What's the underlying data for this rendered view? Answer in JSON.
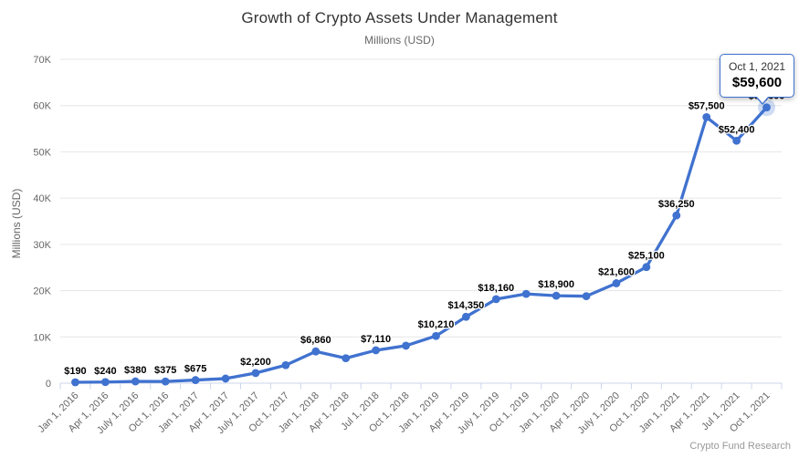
{
  "tooltip": {
    "date": "Oct 1, 2021",
    "value": "$59,600"
  },
  "footer": {
    "credit": "Crypto Fund Research"
  },
  "colors": {
    "line": "#4072cf",
    "halo": "rgba(64,114,207,0.25)",
    "grid": "#e6e6e6",
    "axis": "#ccd6eb",
    "tick_text": "#666666",
    "title_text": "#333333",
    "subtitle_text": "#666666",
    "data_label_text": "#000000",
    "credit_text": "#999999",
    "tooltip_bg": "#ffffff"
  },
  "chart_data": {
    "type": "line",
    "title": "Growth of Crypto Assets Under Management",
    "subtitle": "Millions (USD)",
    "ylabel": "Millions (USD)",
    "xlabel": "",
    "ylim": [
      0,
      70000
    ],
    "grid": "horizontal",
    "legend": false,
    "yticks": [
      {
        "value": 0,
        "label": "0"
      },
      {
        "value": 10000,
        "label": "10K"
      },
      {
        "value": 20000,
        "label": "20K"
      },
      {
        "value": 30000,
        "label": "30K"
      },
      {
        "value": 40000,
        "label": "40K"
      },
      {
        "value": 50000,
        "label": "50K"
      },
      {
        "value": 60000,
        "label": "60K"
      },
      {
        "value": 70000,
        "label": "70K"
      }
    ],
    "categories": [
      "Jan 1, 2016",
      "Apr 1, 2016",
      "July 1, 2016",
      "Oct 1, 2016",
      "Jan 1, 2017",
      "Apr 1, 2017",
      "July 1, 2017",
      "Oct 1, 2017",
      "Jan 1, 2018",
      "Apr 1, 2018",
      "Jul 1, 2018",
      "Oct 1, 2018",
      "Jan 1, 2019",
      "Apr 1, 2019",
      "July 1, 2019",
      "Oct 1, 2019",
      "Jan 1, 2020",
      "Apr 1, 2020",
      "July 1, 2020",
      "Oct 1, 2020",
      "Jan 1, 2021",
      "Apr 1, 2021",
      "Jul 1, 2021",
      "Oct 1, 2021"
    ],
    "values": [
      190,
      240,
      380,
      375,
      675,
      1000,
      2200,
      3900,
      6860,
      5400,
      7110,
      8100,
      10210,
      14350,
      18160,
      19300,
      18900,
      18800,
      21600,
      25100,
      36250,
      57500,
      52400,
      59600
    ],
    "data_labels": [
      "$190",
      "$240",
      "$380",
      "$375",
      "$675",
      "",
      "$2,200",
      "",
      "$6,860",
      "",
      "$7,110",
      "",
      "$10,210",
      "$14,350",
      "$18,160",
      "",
      "$18,900",
      "",
      "$21,600",
      "$25,100",
      "$36,250",
      "$57,500",
      "$52,400",
      "$59,600"
    ],
    "selected_index": 23
  }
}
